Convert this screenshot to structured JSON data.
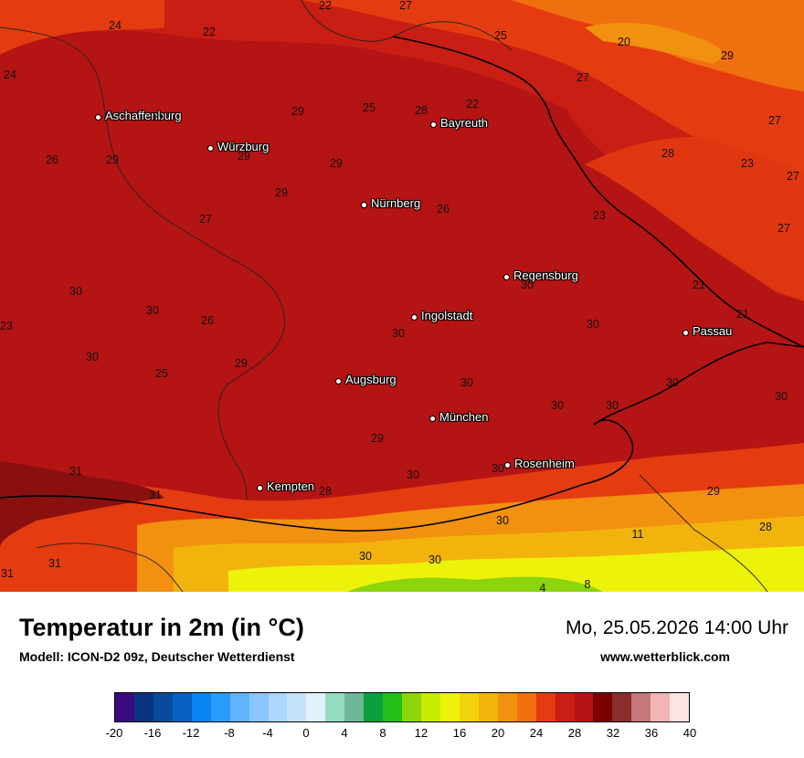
{
  "title": "Temperatur in 2m (in °C)",
  "subtitle": "Modell: ICON-D2 09z, Deutscher Wetterdienst",
  "datetime": "Mo, 25.05.2026 14:00 Uhr",
  "website": "www.wetterblick.com",
  "legend": {
    "ticks": [
      "-20",
      "-16",
      "-12",
      "-8",
      "-4",
      "0",
      "4",
      "8",
      "12",
      "16",
      "20",
      "24",
      "28",
      "32",
      "36",
      "40"
    ],
    "colors": [
      "#3a0a80",
      "#07357d",
      "#0a4a9a",
      "#0761c2",
      "#0a84f0",
      "#2a9cfb",
      "#60b4fb",
      "#8ac6fb",
      "#acd6fb",
      "#c6e2fb",
      "#e0f0fd",
      "#96dcc0",
      "#6cb898",
      "#0aa040",
      "#24c018",
      "#8cd40c",
      "#c8ec00",
      "#ecf20a",
      "#f2d20a",
      "#f2b40c",
      "#f29010",
      "#f07010",
      "#e43c10",
      "#c81e14",
      "#b41414",
      "#7c0000",
      "#8a2e2e",
      "#c47878",
      "#f2b4b4",
      "#fde4e4"
    ]
  },
  "cities": [
    {
      "name": "Aschaffenburg"
    },
    {
      "name": "Bayreuth"
    },
    {
      "name": "Würzburg"
    },
    {
      "name": "Nürnberg"
    },
    {
      "name": "Regensburg"
    },
    {
      "name": "Ingolstadt"
    },
    {
      "name": "Passau"
    },
    {
      "name": "Augsburg"
    },
    {
      "name": "München"
    },
    {
      "name": "Rosenheim"
    },
    {
      "name": "Kempten"
    }
  ],
  "values": [
    "24",
    "22",
    "22",
    "27",
    "25",
    "20",
    "29",
    "24",
    "29",
    "29",
    "25",
    "28",
    "22",
    "27",
    "26",
    "29",
    "29",
    "28",
    "23",
    "27",
    "29",
    "29",
    "26",
    "23",
    "27",
    "27",
    "27",
    "30",
    "30",
    "26",
    "30",
    "21",
    "21",
    "23",
    "30",
    "30",
    "30",
    "25",
    "29",
    "30",
    "30",
    "30",
    "30",
    "29",
    "30",
    "31",
    "31",
    "30",
    "28",
    "29",
    "28",
    "11",
    "30",
    "30",
    "31",
    "31",
    "4",
    "8"
  ]
}
